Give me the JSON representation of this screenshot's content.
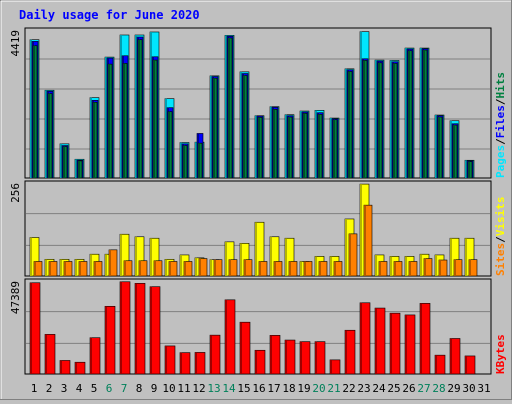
{
  "title": "Daily usage for June 2020",
  "colors": {
    "background": "#c0c0c0",
    "plot_bg": "#c0c0c0",
    "title": "#0000ff",
    "hits_front": "#00e6ff",
    "hits_side": "#00a0b4",
    "files_front": "#0000ff",
    "files_side": "#000090",
    "pages_front": "#008040",
    "pages_side": "#005028",
    "visits_front": "#ffff00",
    "visits_side": "#b4b400",
    "sites_front": "#ff8000",
    "sites_side": "#b45a00",
    "kbytes_front": "#ff0000",
    "kbytes_side": "#a00000",
    "day_label": "#000000",
    "weekend_label": "#00805a",
    "legend_separator": "#000000"
  },
  "chart_data": [
    {
      "type": "bar",
      "panel": "top",
      "ymax_label": "4419",
      "ylim": [
        0,
        4419
      ],
      "legend": [
        "Pages",
        "/",
        "Files",
        "/",
        "Hits"
      ],
      "categories": [
        "1",
        "2",
        "3",
        "4",
        "5",
        "6",
        "7",
        "8",
        "9",
        "10",
        "11",
        "12",
        "13",
        "14",
        "15",
        "16",
        "17",
        "18",
        "19",
        "20",
        "21",
        "22",
        "23",
        "24",
        "25",
        "26",
        "27",
        "28",
        "29",
        "30",
        "31"
      ],
      "weekend_days": [
        "6",
        "7",
        "13",
        "14",
        "20",
        "21",
        "27",
        "28"
      ],
      "series": [
        {
          "name": "Hits",
          "values": [
            4130,
            2620,
            1020,
            560,
            2400,
            3610,
            4270,
            4270,
            4360,
            2370,
            1060,
            1070,
            3050,
            4260,
            3170,
            1860,
            2130,
            1890,
            2000,
            2020,
            1790,
            3260,
            4370,
            3520,
            3510,
            3880,
            3880,
            1880,
            1710,
            530,
            0
          ]
        },
        {
          "name": "Files",
          "values": [
            4080,
            2590,
            970,
            530,
            2320,
            3580,
            3650,
            4210,
            3620,
            2100,
            1020,
            1330,
            3030,
            4230,
            3120,
            1850,
            2110,
            1860,
            1970,
            1950,
            1770,
            3230,
            3560,
            3490,
            3470,
            3850,
            3860,
            1860,
            1620,
            510,
            0
          ]
        },
        {
          "name": "Pages",
          "values": [
            3950,
            2520,
            940,
            510,
            2260,
            3400,
            3420,
            4130,
            3520,
            1980,
            970,
            1040,
            2980,
            4180,
            3060,
            1810,
            2050,
            1820,
            1930,
            1900,
            1740,
            3180,
            3510,
            3440,
            3420,
            3800,
            3820,
            1820,
            1580,
            490,
            0
          ]
        }
      ]
    },
    {
      "type": "bar",
      "panel": "middle",
      "ymax_label": "256",
      "ylim": [
        0,
        256
      ],
      "legend": [
        "Sites",
        "/",
        "Visits"
      ],
      "categories": [
        "1",
        "2",
        "3",
        "4",
        "5",
        "6",
        "7",
        "8",
        "9",
        "10",
        "11",
        "12",
        "13",
        "14",
        "15",
        "16",
        "17",
        "18",
        "19",
        "20",
        "21",
        "22",
        "23",
        "24",
        "25",
        "26",
        "27",
        "28",
        "29",
        "30",
        "31"
      ],
      "series": [
        {
          "name": "Visits",
          "values": [
            106,
            46,
            46,
            46,
            60,
            60,
            115,
            108,
            104,
            46,
            58,
            50,
            45,
            94,
            90,
            148,
            108,
            104,
            40,
            54,
            54,
            157,
            253,
            58,
            54,
            54,
            60,
            58,
            104,
            104,
            0
          ]
        },
        {
          "name": "Sites",
          "values": [
            40,
            40,
            40,
            40,
            40,
            72,
            42,
            42,
            42,
            40,
            40,
            48,
            45,
            45,
            45,
            40,
            40,
            40,
            40,
            40,
            40,
            116,
            195,
            40,
            40,
            40,
            48,
            44,
            45,
            45,
            0
          ]
        }
      ]
    },
    {
      "type": "bar",
      "panel": "bottom",
      "ymax_label": "47389",
      "ylim": [
        0,
        47389
      ],
      "legend": [
        "KBytes"
      ],
      "categories": [
        "1",
        "2",
        "3",
        "4",
        "5",
        "6",
        "7",
        "8",
        "9",
        "10",
        "11",
        "12",
        "13",
        "14",
        "15",
        "16",
        "17",
        "18",
        "19",
        "20",
        "21",
        "22",
        "23",
        "24",
        "25",
        "26",
        "27",
        "28",
        "29",
        "30",
        "31"
      ],
      "series": [
        {
          "name": "KBytes",
          "values": [
            46500,
            20200,
            6900,
            6000,
            18500,
            34500,
            47000,
            46200,
            44500,
            14300,
            10900,
            11000,
            19800,
            37800,
            26400,
            12100,
            19700,
            17300,
            16500,
            16500,
            7200,
            22300,
            36300,
            33600,
            31000,
            30100,
            36000,
            9600,
            18100,
            9200,
            0
          ]
        }
      ]
    }
  ]
}
